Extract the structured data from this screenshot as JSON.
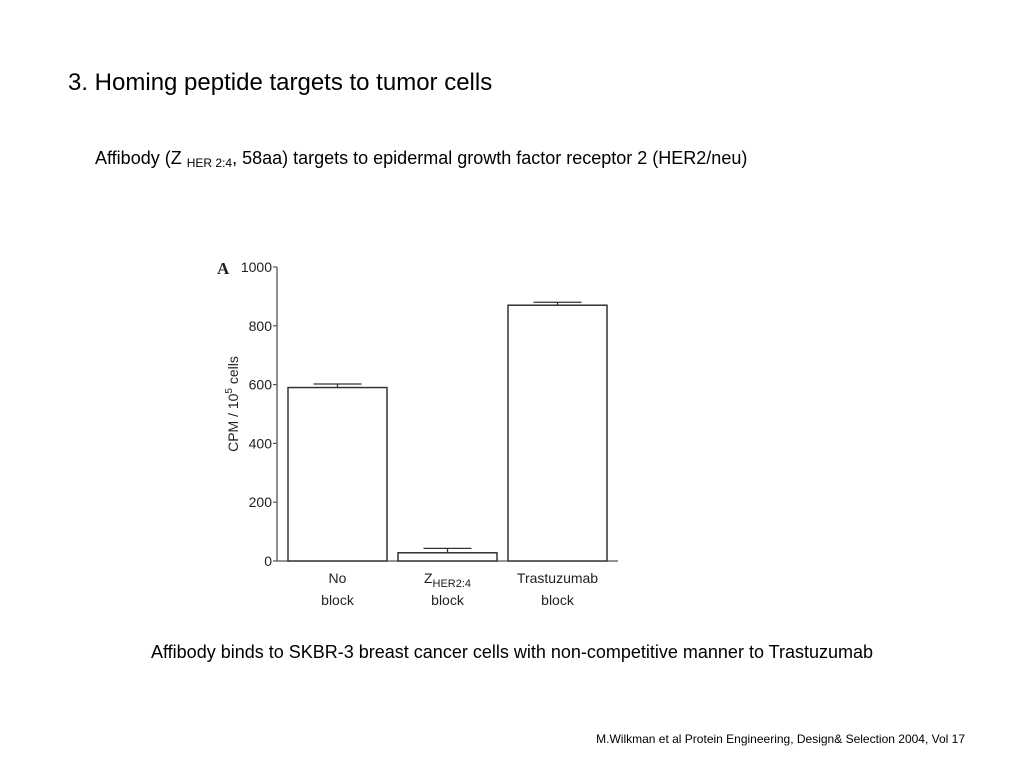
{
  "slide": {
    "title": "3. Homing peptide targets to tumor cells",
    "subtitle_prefix": "Affibody (Z ",
    "subtitle_sub": "HER 2:4",
    "subtitle_suffix": ", 58aa) targets to epidermal growth factor receptor 2 (HER2/neu)",
    "caption": "Affibody binds to SKBR-3 breast cancer cells with non-competitive manner to Trastuzumab",
    "citation": "M.Wilkman et al Protein Engineering, Design& Selection 2004, Vol 17"
  },
  "chart_data": {
    "type": "bar",
    "panel_label": "A",
    "ylabel": "CPM / 10^5 cells",
    "ylim": [
      0,
      1000
    ],
    "yticks": [
      0,
      200,
      400,
      600,
      800,
      1000
    ],
    "categories": [
      {
        "line1": "No",
        "line1_sub": "",
        "line2": "block"
      },
      {
        "line1": "Z",
        "line1_sub": "HER2:4",
        "line2": "block"
      },
      {
        "line1": "Trastuzumab",
        "line1_sub": "",
        "line2": "block"
      }
    ],
    "values": [
      590,
      28,
      870
    ],
    "errors": [
      12,
      15,
      10
    ],
    "grid": false,
    "bar_fill": "#ffffff",
    "bar_stroke": "#333333"
  }
}
